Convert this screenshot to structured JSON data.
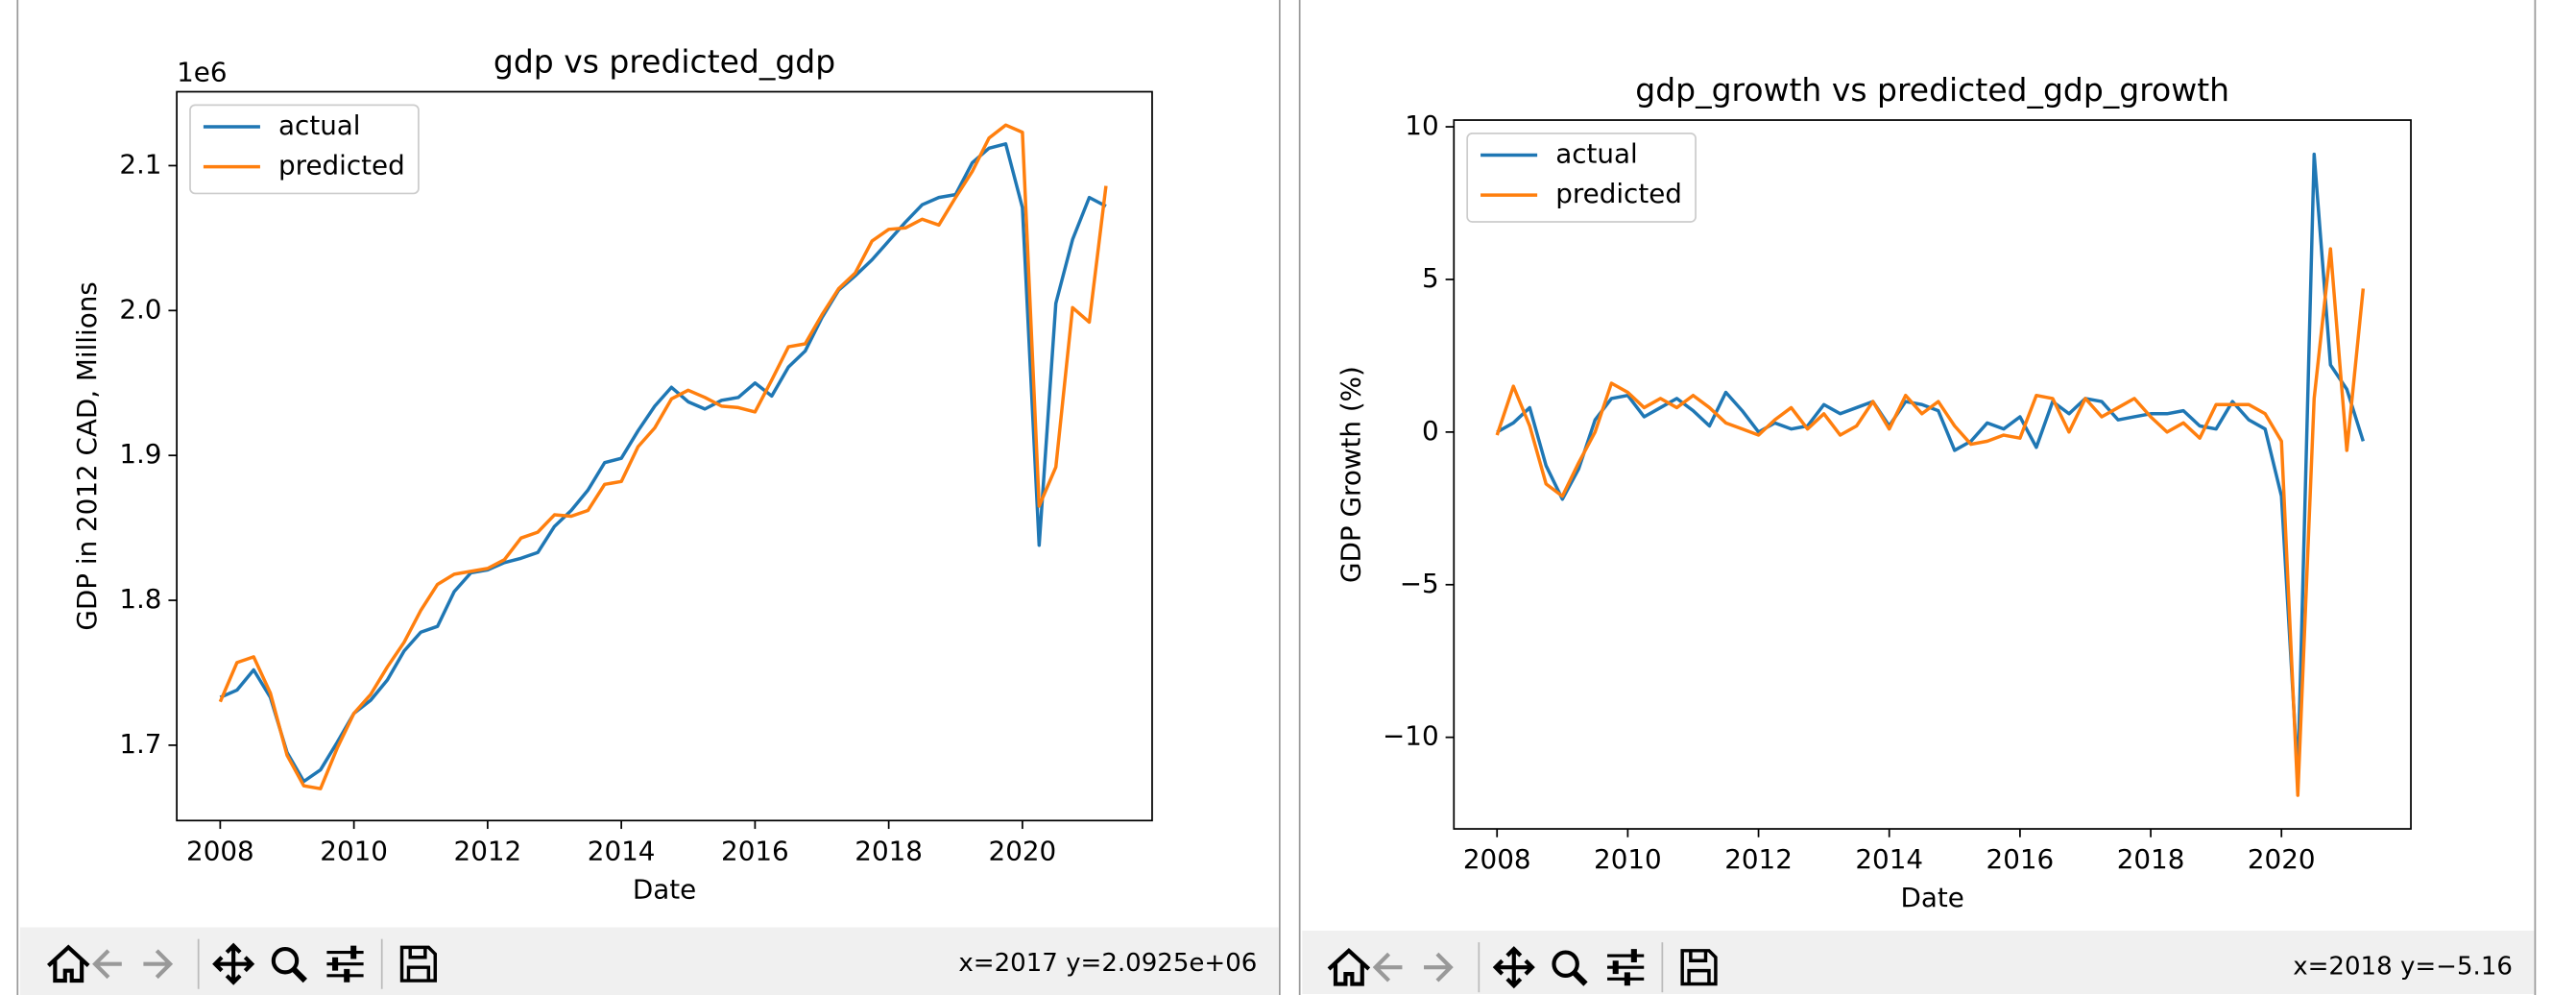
{
  "chart_data": [
    {
      "type": "line",
      "title": "gdp vs predicted_gdp",
      "x_label": "Date",
      "y_label": "GDP in 2012 CAD, Millions",
      "y_offset_label": "1e6",
      "legend": "upper left",
      "grid": false,
      "xlim": [
        2007.35,
        2021.94
      ],
      "xticks": [
        2008,
        2010,
        2012,
        2014,
        2016,
        2018,
        2020
      ],
      "ylim": [
        1.648,
        2.151
      ],
      "yticks": [
        1.7,
        1.8,
        1.9,
        {
          "value": 2,
          "label": "2.0"
        },
        2.1
      ],
      "x": [
        2008,
        2008.25,
        2008.5,
        2008.75,
        2009,
        2009.25,
        2009.5,
        2009.75,
        2010,
        2010.25,
        2010.5,
        2010.75,
        2011,
        2011.25,
        2011.5,
        2011.75,
        2012,
        2012.25,
        2012.5,
        2012.75,
        2013,
        2013.25,
        2013.5,
        2013.75,
        2014,
        2014.25,
        2014.5,
        2014.75,
        2015,
        2015.25,
        2015.5,
        2015.75,
        2016,
        2016.25,
        2016.5,
        2016.75,
        2017,
        2017.25,
        2017.5,
        2017.75,
        2018,
        2018.25,
        2018.5,
        2018.75,
        2019,
        2019.25,
        2019.5,
        2019.75,
        2020,
        2020.25,
        2020.5,
        2020.75,
        2021,
        2021.25
      ],
      "series": [
        {
          "name": "actual",
          "color": "#1f77b4",
          "values": [
            1.733,
            1.738,
            1.752,
            1.733,
            1.695,
            1.675,
            1.683,
            1.702,
            1.722,
            1.731,
            1.745,
            1.765,
            1.778,
            1.782,
            1.806,
            1.819,
            1.821,
            1.826,
            1.829,
            1.833,
            1.851,
            1.862,
            1.876,
            1.895,
            1.898,
            1.917,
            1.934,
            1.947,
            1.937,
            1.932,
            1.938,
            1.94,
            1.95,
            1.941,
            1.961,
            1.972,
            1.995,
            2.014,
            2.024,
            2.035,
            2.048,
            2.061,
            2.073,
            2.078,
            2.08,
            2.102,
            2.112,
            2.115,
            2.071,
            1.838,
            2.005,
            2.049,
            2.078,
            2.072
          ]
        },
        {
          "name": "predicted",
          "color": "#ff7f0e",
          "values": [
            1.73,
            1.757,
            1.761,
            1.736,
            1.693,
            1.672,
            1.67,
            1.698,
            1.722,
            1.735,
            1.754,
            1.771,
            1.793,
            1.811,
            1.818,
            1.82,
            1.822,
            1.828,
            1.843,
            1.847,
            1.859,
            1.858,
            1.862,
            1.88,
            1.882,
            1.906,
            1.919,
            1.939,
            1.945,
            1.94,
            1.934,
            1.933,
            1.93,
            1.952,
            1.975,
            1.977,
            1.997,
            2.015,
            2.026,
            2.048,
            2.056,
            2.057,
            2.063,
            2.059,
            2.078,
            2.096,
            2.119,
            2.128,
            2.123,
            1.865,
            1.892,
            2.002,
            1.992,
            2.086
          ]
        }
      ]
    },
    {
      "type": "line",
      "title": "gdp_growth vs predicted_gdp_growth",
      "x_label": "Date",
      "y_label": "GDP Growth (%)",
      "legend": "upper left",
      "grid": false,
      "xlim": [
        2007.34,
        2021.98
      ],
      "xticks": [
        2008,
        2010,
        2012,
        2014,
        2016,
        2018,
        2020
      ],
      "ylim": [
        -13.0,
        10.22
      ],
      "yticks": [
        {
          "value": -10,
          "label": "−10"
        },
        {
          "value": -5,
          "label": "−5"
        },
        0,
        5,
        10
      ],
      "x": [
        2008,
        2008.25,
        2008.5,
        2008.75,
        2009,
        2009.25,
        2009.5,
        2009.75,
        2010,
        2010.25,
        2010.5,
        2010.75,
        2011,
        2011.25,
        2011.5,
        2011.75,
        2012,
        2012.25,
        2012.5,
        2012.75,
        2013,
        2013.25,
        2013.5,
        2013.75,
        2014,
        2014.25,
        2014.5,
        2014.75,
        2015,
        2015.25,
        2015.5,
        2015.75,
        2016,
        2016.25,
        2016.5,
        2016.75,
        2017,
        2017.25,
        2017.5,
        2017.75,
        2018,
        2018.25,
        2018.5,
        2018.75,
        2019,
        2019.25,
        2019.5,
        2019.75,
        2020,
        2020.25,
        2020.5,
        2020.75,
        2021,
        2021.25
      ],
      "series": [
        {
          "name": "actual",
          "color": "#1f77b4",
          "values": [
            0,
            0.3,
            0.8,
            -1.1,
            -2.2,
            -1.2,
            0.4,
            1.1,
            1.2,
            0.5,
            0.8,
            1.1,
            0.7,
            0.2,
            1.3,
            0.7,
            0.0,
            0.3,
            0.1,
            0.2,
            0.9,
            0.6,
            0.8,
            1.0,
            0.2,
            1.0,
            0.9,
            0.7,
            -0.6,
            -0.3,
            0.3,
            0.1,
            0.5,
            -0.5,
            1.0,
            0.6,
            1.1,
            1.0,
            0.4,
            0.5,
            0.6,
            0.6,
            0.7,
            0.2,
            0.1,
            1.0,
            0.4,
            0.1,
            -2.1,
            -11.3,
            9.1,
            2.2,
            1.4,
            -0.3
          ]
        },
        {
          "name": "predicted",
          "color": "#ff7f0e",
          "values": [
            -0.1,
            1.5,
            0.2,
            -1.7,
            -2.1,
            -1.0,
            0.0,
            1.6,
            1.3,
            0.8,
            1.1,
            0.8,
            1.2,
            0.8,
            0.3,
            0.1,
            -0.1,
            0.4,
            0.8,
            0.1,
            0.6,
            -0.1,
            0.2,
            1.0,
            0.1,
            1.2,
            0.6,
            1.0,
            0.2,
            -0.4,
            -0.3,
            -0.1,
            -0.2,
            1.2,
            1.1,
            0.0,
            1.1,
            0.5,
            0.8,
            1.1,
            0.5,
            0.0,
            0.3,
            -0.2,
            0.9,
            0.9,
            0.9,
            0.6,
            -0.3,
            -11.9,
            1.1,
            6.0,
            -0.6,
            4.7
          ]
        }
      ]
    }
  ],
  "toolbars": [
    {
      "status": "x=2017 y=2.0925e+06"
    },
    {
      "status": "x=2018 y=−5.16"
    }
  ]
}
